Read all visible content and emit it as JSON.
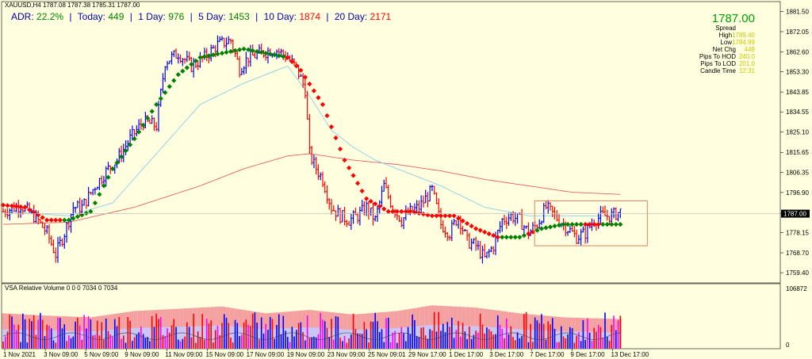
{
  "header": {
    "symbol_line": "XAUUSD,H4  1787.08 1787.38 1785.31 1787.00",
    "adr_label": "ADR:",
    "adr_value": "22.2%",
    "today_label": "Today:",
    "today_value": "449",
    "day1_label": "1 Day:",
    "day1_value": "976",
    "day5_label": "5 Day:",
    "day5_value": "1453",
    "day10_label": "10 Day:",
    "day10_value": "1874",
    "day20_label": "20 Day:",
    "day20_value": "2171",
    "sep": "|"
  },
  "info_panel": {
    "price": "1787.00",
    "rows": [
      {
        "label": "Spread",
        "value": "",
        "color": "#000000"
      },
      {
        "label": "High",
        "value": "1789.40",
        "color": "#c8c800"
      },
      {
        "label": "Low",
        "value": "1784.99",
        "color": "#c8c800"
      },
      {
        "label": "Net Chg",
        "value": "449",
        "color": "#c8c800"
      },
      {
        "label": "Pips To HOD",
        "value": "240.0",
        "color": "#c8c800"
      },
      {
        "label": "Pips To LOD",
        "value": "201.0",
        "color": "#c8c800"
      },
      {
        "label": "Candle Time",
        "value": "12:31",
        "color": "#c8c800"
      }
    ]
  },
  "indicator_label": "VSA Relative Volume 0 0 0 7034 0 7034",
  "colors": {
    "background": "#ffffe0",
    "bull": "#0000ff",
    "bear": "#ff0000",
    "ma_up": "#008000",
    "ma_down": "#ff0000",
    "ma_fast": "#87ceeb",
    "ma_slow": "#e06060",
    "box": "#e08060",
    "price_label": "#000000"
  },
  "chart_data": {
    "type": "candlestick",
    "symbol": "XAUUSD",
    "timeframe": "H4",
    "ylim": [
      1755,
      1885
    ],
    "yticks": [
      "1881.50",
      "1872.05",
      "1862.60",
      "1853.30",
      "1843.85",
      "1834.55",
      "1825.10",
      "1815.65",
      "1806.35",
      "1796.90",
      "1787.00",
      "1778.15",
      "1768.70",
      "1759.40"
    ],
    "xticks": [
      "1 Nov 2021",
      "3 Nov 09:00",
      "5 Nov 09:00",
      "9 Nov 09:00",
      "11 Nov 09:00",
      "15 Nov 09:00",
      "17 Nov 09:00",
      "19 Nov 09:00",
      "23 Nov 09:00",
      "25 Nov 09:01",
      "29 Nov 17:00",
      "1 Dec 17:00",
      "3 Dec 17:00",
      "7 Dec 17:00",
      "9 Dec 17:00",
      "13 Dec 17:00"
    ],
    "current_price": "1787.00",
    "volume_axis_max": "106872",
    "volume_axis_min": "0",
    "anchors": [
      [
        0,
        1788
      ],
      [
        8,
        1791
      ],
      [
        15,
        1785
      ],
      [
        20,
        1778
      ],
      [
        24,
        1768
      ],
      [
        28,
        1778
      ],
      [
        32,
        1790
      ],
      [
        36,
        1790
      ],
      [
        42,
        1800
      ],
      [
        48,
        1808
      ],
      [
        52,
        1812
      ],
      [
        58,
        1822
      ],
      [
        64,
        1830
      ],
      [
        70,
        1828
      ],
      [
        74,
        1858
      ],
      [
        80,
        1862
      ],
      [
        86,
        1856
      ],
      [
        92,
        1860
      ],
      [
        98,
        1866
      ],
      [
        104,
        1868
      ],
      [
        108,
        1855
      ],
      [
        112,
        1860
      ],
      [
        118,
        1862
      ],
      [
        124,
        1864
      ],
      [
        130,
        1860
      ],
      [
        134,
        1855
      ],
      [
        138,
        1845
      ],
      [
        140,
        1815
      ],
      [
        142,
        1810
      ],
      [
        146,
        1803
      ],
      [
        150,
        1790
      ],
      [
        154,
        1786
      ],
      [
        158,
        1784
      ],
      [
        162,
        1786
      ],
      [
        166,
        1790
      ],
      [
        170,
        1784
      ],
      [
        174,
        1800
      ],
      [
        178,
        1790
      ],
      [
        182,
        1784
      ],
      [
        186,
        1788
      ],
      [
        190,
        1790
      ],
      [
        196,
        1798
      ],
      [
        200,
        1782
      ],
      [
        204,
        1778
      ],
      [
        208,
        1786
      ],
      [
        212,
        1774
      ],
      [
        216,
        1772
      ],
      [
        220,
        1766
      ],
      [
        224,
        1772
      ],
      [
        228,
        1784
      ],
      [
        232,
        1786
      ],
      [
        236,
        1784
      ],
      [
        240,
        1778
      ],
      [
        244,
        1782
      ],
      [
        248,
        1790
      ],
      [
        252,
        1786
      ],
      [
        256,
        1782
      ],
      [
        262,
        1776
      ],
      [
        266,
        1778
      ],
      [
        270,
        1784
      ],
      [
        274,
        1786
      ],
      [
        278,
        1786
      ],
      [
        282,
        1788
      ]
    ],
    "ma_fast_anchors": [
      [
        0,
        1788
      ],
      [
        30,
        1786
      ],
      [
        50,
        1792
      ],
      [
        70,
        1815
      ],
      [
        90,
        1838
      ],
      [
        110,
        1848
      ],
      [
        130,
        1856
      ],
      [
        140,
        1842
      ],
      [
        150,
        1826
      ],
      [
        160,
        1818
      ],
      [
        170,
        1812
      ],
      [
        180,
        1808
      ],
      [
        190,
        1804
      ],
      [
        200,
        1800
      ],
      [
        210,
        1795
      ],
      [
        220,
        1790
      ],
      [
        230,
        1788
      ],
      [
        240,
        1786
      ],
      [
        250,
        1786
      ],
      [
        260,
        1786
      ],
      [
        270,
        1786
      ],
      [
        282,
        1786
      ]
    ],
    "ma_slow_anchors": [
      [
        0,
        1782
      ],
      [
        30,
        1783
      ],
      [
        60,
        1790
      ],
      [
        90,
        1800
      ],
      [
        110,
        1808
      ],
      [
        130,
        1814
      ],
      [
        140,
        1815
      ],
      [
        160,
        1812
      ],
      [
        180,
        1810
      ],
      [
        200,
        1807
      ],
      [
        220,
        1803
      ],
      [
        240,
        1800
      ],
      [
        260,
        1797
      ],
      [
        282,
        1796
      ]
    ],
    "ma_dot_anchors": [
      [
        0,
        1791
      ],
      [
        10,
        1790
      ],
      [
        20,
        1784
      ],
      [
        30,
        1784
      ],
      [
        40,
        1788
      ],
      [
        50,
        1808
      ],
      [
        60,
        1822
      ],
      [
        70,
        1838
      ],
      [
        80,
        1852
      ],
      [
        90,
        1860
      ],
      [
        100,
        1862
      ],
      [
        110,
        1864
      ],
      [
        120,
        1862
      ],
      [
        130,
        1860
      ],
      [
        136,
        1854
      ],
      [
        146,
        1838
      ],
      [
        156,
        1812
      ],
      [
        166,
        1794
      ],
      [
        176,
        1788
      ],
      [
        186,
        1788
      ],
      [
        196,
        1786
      ],
      [
        206,
        1786
      ],
      [
        216,
        1780
      ],
      [
        226,
        1776
      ],
      [
        236,
        1776
      ],
      [
        246,
        1780
      ],
      [
        256,
        1782
      ],
      [
        266,
        1782
      ],
      [
        282,
        1782
      ]
    ],
    "ma_trend_segments": [
      [
        0,
        "down"
      ],
      [
        28,
        "up"
      ],
      [
        130,
        "down"
      ],
      [
        228,
        "up"
      ],
      [
        240,
        "down"
      ],
      [
        244,
        "up"
      ],
      [
        266,
        "down"
      ],
      [
        274,
        "up"
      ]
    ],
    "volume_band_anchors": [
      [
        0,
        0.62
      ],
      [
        20,
        0.58
      ],
      [
        40,
        0.55
      ],
      [
        60,
        0.66
      ],
      [
        80,
        0.7
      ],
      [
        100,
        0.74
      ],
      [
        120,
        0.62
      ],
      [
        140,
        0.68
      ],
      [
        160,
        0.6
      ],
      [
        180,
        0.66
      ],
      [
        196,
        0.76
      ],
      [
        216,
        0.72
      ],
      [
        236,
        0.62
      ],
      [
        256,
        0.55
      ],
      [
        282,
        0.52
      ]
    ],
    "consolidation_box": {
      "x_start": 245,
      "x_end": 282,
      "price_high": 1793,
      "price_low": 1772
    }
  }
}
